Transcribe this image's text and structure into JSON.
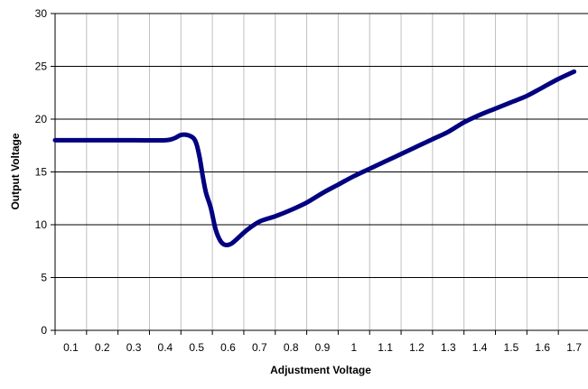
{
  "chart_data": {
    "type": "line",
    "title": "",
    "xlabel": "Adjustment Voltage",
    "ylabel": "Output Voltage",
    "categories": [
      "0.1",
      "0.2",
      "0.3",
      "0.4",
      "0.5",
      "0.6",
      "0.7",
      "0.8",
      "0.9",
      "1",
      "1.1",
      "1.2",
      "1.3",
      "1.4",
      "1.5",
      "1.6",
      "1.7"
    ],
    "ylim": [
      0,
      30
    ],
    "yticks": [
      0,
      5,
      10,
      15,
      20,
      25,
      30
    ],
    "grid": true,
    "legend": "none",
    "series": [
      {
        "color": "#000080",
        "points": [
          [
            0.05,
            18.0
          ],
          [
            0.1,
            18.0
          ],
          [
            0.2,
            18.0
          ],
          [
            0.3,
            18.0
          ],
          [
            0.4,
            18.0
          ],
          [
            0.43,
            18.2
          ],
          [
            0.45,
            18.5
          ],
          [
            0.47,
            18.5
          ],
          [
            0.49,
            18.2
          ],
          [
            0.5,
            17.6
          ],
          [
            0.51,
            16.3
          ],
          [
            0.52,
            14.5
          ],
          [
            0.53,
            13.0
          ],
          [
            0.545,
            11.6
          ],
          [
            0.56,
            9.6
          ],
          [
            0.575,
            8.5
          ],
          [
            0.59,
            8.1
          ],
          [
            0.61,
            8.2
          ],
          [
            0.63,
            8.7
          ],
          [
            0.66,
            9.5
          ],
          [
            0.7,
            10.3
          ],
          [
            0.75,
            10.8
          ],
          [
            0.8,
            11.4
          ],
          [
            0.85,
            12.1
          ],
          [
            0.9,
            13.0
          ],
          [
            0.95,
            13.8
          ],
          [
            1.0,
            14.6
          ],
          [
            1.05,
            15.3
          ],
          [
            1.1,
            16.0
          ],
          [
            1.15,
            16.7
          ],
          [
            1.2,
            17.4
          ],
          [
            1.25,
            18.1
          ],
          [
            1.3,
            18.8
          ],
          [
            1.35,
            19.7
          ],
          [
            1.4,
            20.4
          ],
          [
            1.45,
            21.0
          ],
          [
            1.5,
            21.6
          ],
          [
            1.55,
            22.2
          ],
          [
            1.6,
            23.0
          ],
          [
            1.65,
            23.8
          ],
          [
            1.7,
            24.5
          ]
        ]
      }
    ]
  }
}
